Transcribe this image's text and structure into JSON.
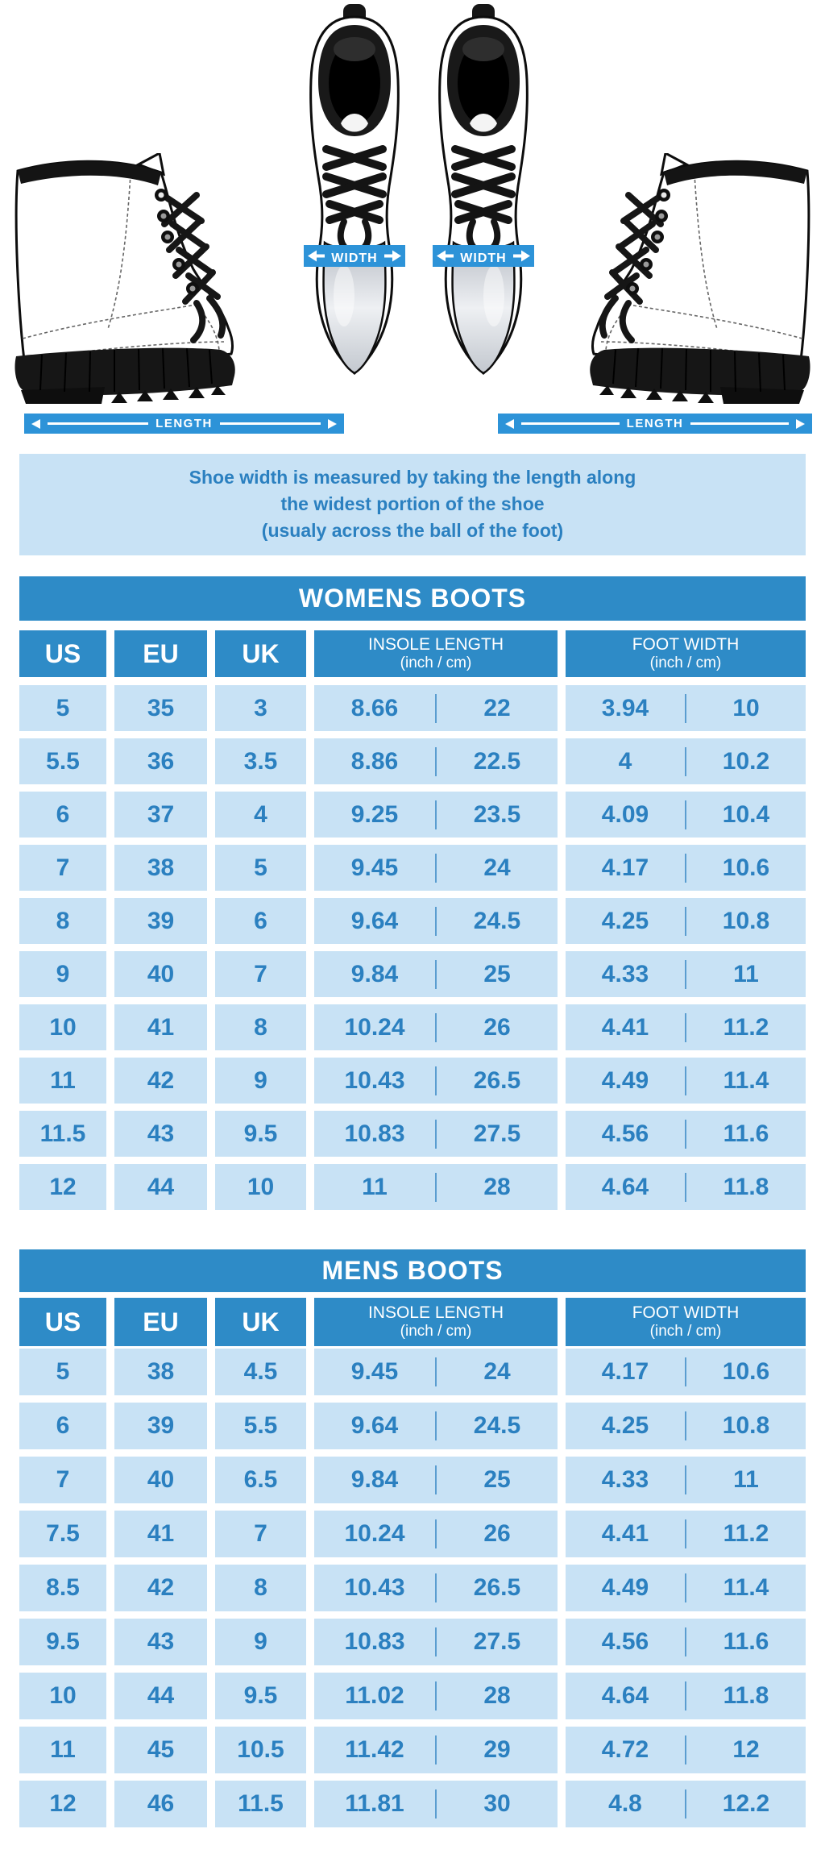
{
  "hero": {
    "width_label": "WIDTH",
    "length_label": "LENGTH"
  },
  "info_box": {
    "line1": "Shoe width is measured by taking the length along",
    "line2": "the widest portion of the shoe",
    "line3": "(usualy across the ball of the foot)"
  },
  "tables": {
    "womens": {
      "title": "WOMENS BOOTS",
      "headers": {
        "us": "US",
        "eu": "EU",
        "uk": "UK",
        "insole": "INSOLE LENGTH",
        "insole_unit": "(inch / cm)",
        "foot": "FOOT WIDTH",
        "foot_unit": "(inch / cm)"
      }
    },
    "mens": {
      "title": "MENS BOOTS",
      "headers": {
        "us": "US",
        "eu": "EU",
        "uk": "UK",
        "insole": "INSOLE LENGTH",
        "insole_unit": "(inch / cm)",
        "foot": "FOOT WIDTH",
        "foot_unit": "(inch / cm)"
      }
    }
  },
  "chart_data": [
    {
      "type": "table",
      "name": "womens",
      "title": "WOMENS BOOTS",
      "columns": [
        "US",
        "EU",
        "UK",
        "INSOLE LENGTH (inch)",
        "INSOLE LENGTH (cm)",
        "FOOT WIDTH (inch)",
        "FOOT WIDTH (cm)"
      ],
      "rows": [
        [
          5,
          35,
          3,
          8.66,
          22,
          3.94,
          10
        ],
        [
          5.5,
          36,
          3.5,
          8.86,
          22.5,
          4,
          10.2
        ],
        [
          6,
          37,
          4,
          9.25,
          23.5,
          4.09,
          10.4
        ],
        [
          7,
          38,
          5,
          9.45,
          24,
          4.17,
          10.6
        ],
        [
          8,
          39,
          6,
          9.64,
          24.5,
          4.25,
          10.8
        ],
        [
          9,
          40,
          7,
          9.84,
          25,
          4.33,
          11
        ],
        [
          10,
          41,
          8,
          10.24,
          26,
          4.41,
          11.2
        ],
        [
          11,
          42,
          9,
          10.43,
          26.5,
          4.49,
          11.4
        ],
        [
          11.5,
          43,
          9.5,
          10.83,
          27.5,
          4.56,
          11.6
        ],
        [
          12,
          44,
          10,
          11,
          28,
          4.64,
          11.8
        ]
      ]
    },
    {
      "type": "table",
      "name": "mens",
      "title": "MENS BOOTS",
      "columns": [
        "US",
        "EU",
        "UK",
        "INSOLE LENGTH (inch)",
        "INSOLE LENGTH (cm)",
        "FOOT WIDTH (inch)",
        "FOOT WIDTH (cm)"
      ],
      "rows": [
        [
          5,
          38,
          4.5,
          9.45,
          24,
          4.17,
          10.6
        ],
        [
          6,
          39,
          5.5,
          9.64,
          24.5,
          4.25,
          10.8
        ],
        [
          7,
          40,
          6.5,
          9.84,
          25,
          4.33,
          11
        ],
        [
          7.5,
          41,
          7,
          10.24,
          26,
          4.41,
          11.2
        ],
        [
          8.5,
          42,
          8,
          10.43,
          26.5,
          4.49,
          11.4
        ],
        [
          9.5,
          43,
          9,
          10.83,
          27.5,
          4.56,
          11.6
        ],
        [
          10,
          44,
          9.5,
          11.02,
          28,
          4.64,
          11.8
        ],
        [
          11,
          45,
          10.5,
          11.42,
          29,
          4.72,
          12
        ],
        [
          12,
          46,
          11.5,
          11.81,
          30,
          4.8,
          12.2
        ]
      ]
    }
  ],
  "colors": {
    "primary_blue": "#2e8bc7",
    "band_blue": "#2d93d8",
    "cell_blue": "#c8e2f5",
    "text_blue": "#2b80c0"
  }
}
